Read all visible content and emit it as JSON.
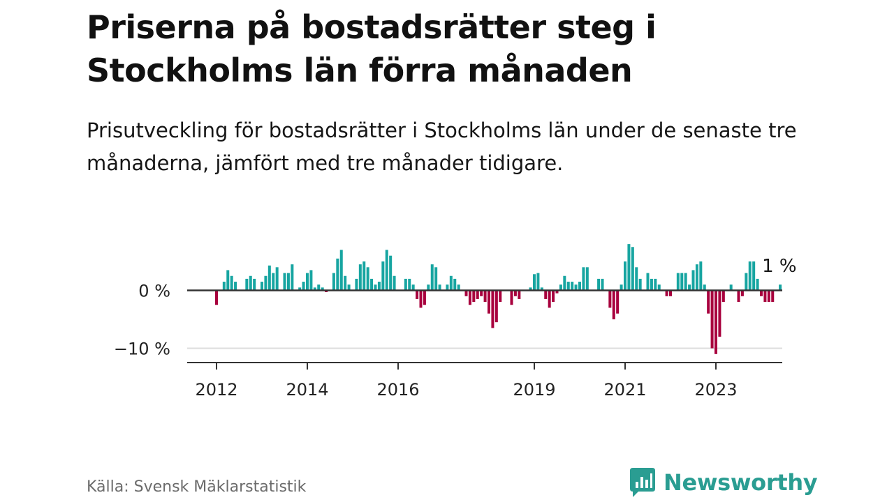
{
  "header": {
    "title": "Priserna på bostadsrätter steg i Stockholms län förra månaden",
    "subtitle": "Prisutveckling för bostadsrätter i Stockholms län under de senaste tre månaderna, jämfört med tre månader tidigare."
  },
  "footer": {
    "source": "Källa: Svensk Mäklarstatistik",
    "brand": "Newsworthy"
  },
  "colors": {
    "positive": "#17a5a1",
    "negative": "#a8003d",
    "brand": "#2a9d92"
  },
  "chart_data": {
    "type": "bar",
    "title": "Priserna på bostadsrätter steg i Stockholms län förra månaden",
    "subtitle": "Prisutveckling för bostadsrätter i Stockholms län under de senaste tre månaderna, jämfört med tre månader tidigare.",
    "xlabel": "",
    "ylabel": "",
    "unit": "%",
    "ylim": [
      -12,
      9
    ],
    "xlim": [
      2011.5,
      2024.6
    ],
    "grid": "horizontal",
    "legend": "none",
    "y_ticks": [
      {
        "value": 0,
        "label": "0 %"
      },
      {
        "value": -10,
        "label": "−10 %"
      }
    ],
    "x_ticks": [
      {
        "value": 2012,
        "label": "2012"
      },
      {
        "value": 2014,
        "label": "2014"
      },
      {
        "value": 2016,
        "label": "2016"
      },
      {
        "value": 2019,
        "label": "2019"
      },
      {
        "value": 2021,
        "label": "2021"
      },
      {
        "value": 2023,
        "label": "2023"
      }
    ],
    "start": {
      "year": 2012,
      "month": 1
    },
    "values": [
      -2.5,
      0,
      1.5,
      3.5,
      2.5,
      1.5,
      0,
      0,
      2.0,
      2.5,
      2.0,
      0,
      1.5,
      2.5,
      4.3,
      3.0,
      4.0,
      0,
      3.0,
      3.0,
      4.5,
      0,
      0.5,
      1.5,
      3.0,
      3.5,
      0.5,
      1.0,
      0.5,
      -0.3,
      0,
      3.0,
      5.5,
      7.0,
      2.5,
      1.0,
      0,
      2.0,
      4.5,
      5.0,
      4.0,
      2.0,
      1.0,
      1.5,
      5.0,
      7.0,
      6.0,
      2.5,
      0,
      0,
      2.0,
      2.0,
      1.0,
      -1.5,
      -3.0,
      -2.5,
      1.0,
      4.5,
      4.0,
      1.0,
      0,
      1.0,
      2.5,
      2.0,
      1.0,
      0,
      -1.0,
      -2.5,
      -2.0,
      -1.5,
      -1.0,
      -2.0,
      -4.0,
      -6.5,
      -5.5,
      -2.0,
      0,
      0,
      -2.5,
      -1.0,
      -1.5,
      0,
      0,
      0.5,
      2.8,
      3.0,
      0.5,
      -1.5,
      -3.0,
      -2.0,
      -0.5,
      1.0,
      2.5,
      1.5,
      1.5,
      1.0,
      1.5,
      4.0,
      4.0,
      0,
      0,
      2.0,
      2.0,
      0,
      -3.0,
      -5.0,
      -4.0,
      1.0,
      5.0,
      8.0,
      7.5,
      4.0,
      2.0,
      0,
      3.0,
      2.0,
      2.0,
      1.0,
      0,
      -1.0,
      -1.0,
      0,
      3.0,
      3.0,
      3.0,
      1.0,
      3.5,
      4.5,
      5.0,
      1.0,
      -4.0,
      -10.0,
      -11.0,
      -8.0,
      -2.0,
      0,
      1.0,
      0,
      -2.0,
      -1.0,
      3.0,
      5.0,
      5.0,
      2.0,
      -1.0,
      -2.0,
      -2.0,
      -2.0,
      0,
      1.0
    ],
    "annotations": [
      {
        "text": "1 %",
        "target": "last"
      }
    ]
  }
}
